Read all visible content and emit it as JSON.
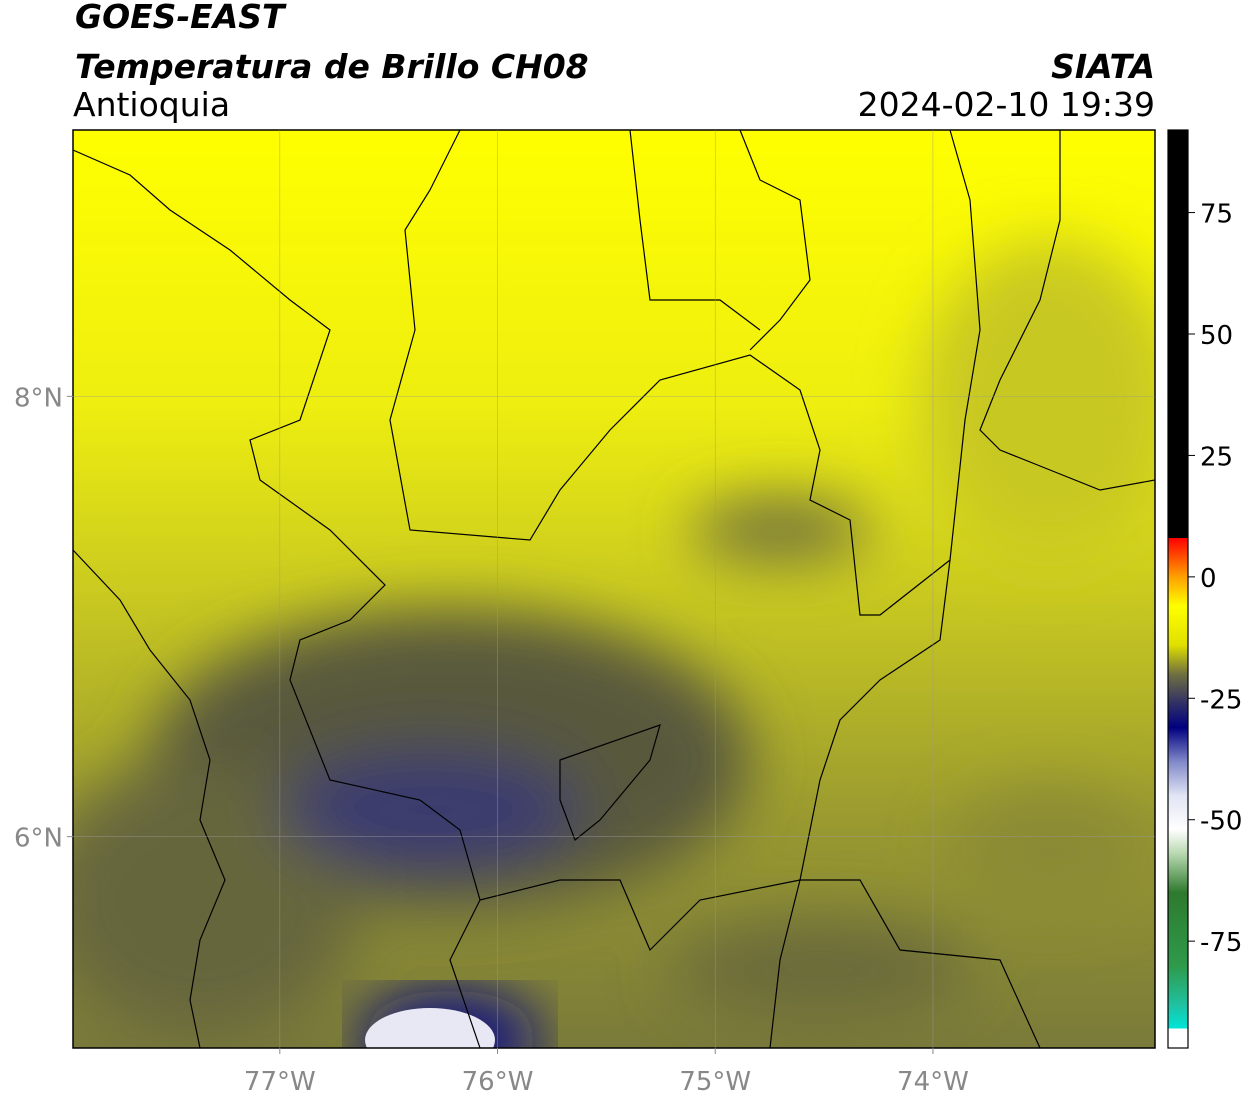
{
  "header": {
    "title": "GOES-EAST",
    "subtitle": "Temperatura de Brillo CH08",
    "region": "Antioquia",
    "source": "SIATA",
    "datetime": "2024-02-10 19:39"
  },
  "map": {
    "lonlim": [
      -77.95,
      -72.98
    ],
    "latlim": [
      5.04,
      9.21
    ],
    "lon_ticks": [
      {
        "value": -77,
        "label": "77°W"
      },
      {
        "value": -76,
        "label": "76°W"
      },
      {
        "value": -75,
        "label": "75°W"
      },
      {
        "value": -74,
        "label": "74°W"
      }
    ],
    "lat_ticks": [
      {
        "value": 8,
        "label": "8°N"
      },
      {
        "value": 6,
        "label": "6°N"
      }
    ],
    "grid": true
  },
  "colorbar": {
    "lim": [
      -97,
      92
    ],
    "ticks": [
      75,
      50,
      25,
      0,
      -25,
      -50,
      -75
    ],
    "colormap": [
      [
        -97,
        "#ffffff"
      ],
      [
        -93,
        "#ffffff"
      ],
      [
        -93,
        "#00e5d8"
      ],
      [
        -88,
        "#20c0a0"
      ],
      [
        -80,
        "#2e9a4a"
      ],
      [
        -65,
        "#2e7a2e"
      ],
      [
        -57,
        "#b8d8b0"
      ],
      [
        -52,
        "#ffffff"
      ],
      [
        -45,
        "#e0e4f4"
      ],
      [
        -38,
        "#8088c8"
      ],
      [
        -31,
        "#000080"
      ],
      [
        -26,
        "#303066"
      ],
      [
        -20,
        "#707040"
      ],
      [
        -14,
        "#e0e000"
      ],
      [
        -6,
        "#ffff00"
      ],
      [
        0,
        "#ffa000"
      ],
      [
        8,
        "#ff0000"
      ],
      [
        8,
        "#000000"
      ],
      [
        92,
        "#000000"
      ]
    ]
  }
}
